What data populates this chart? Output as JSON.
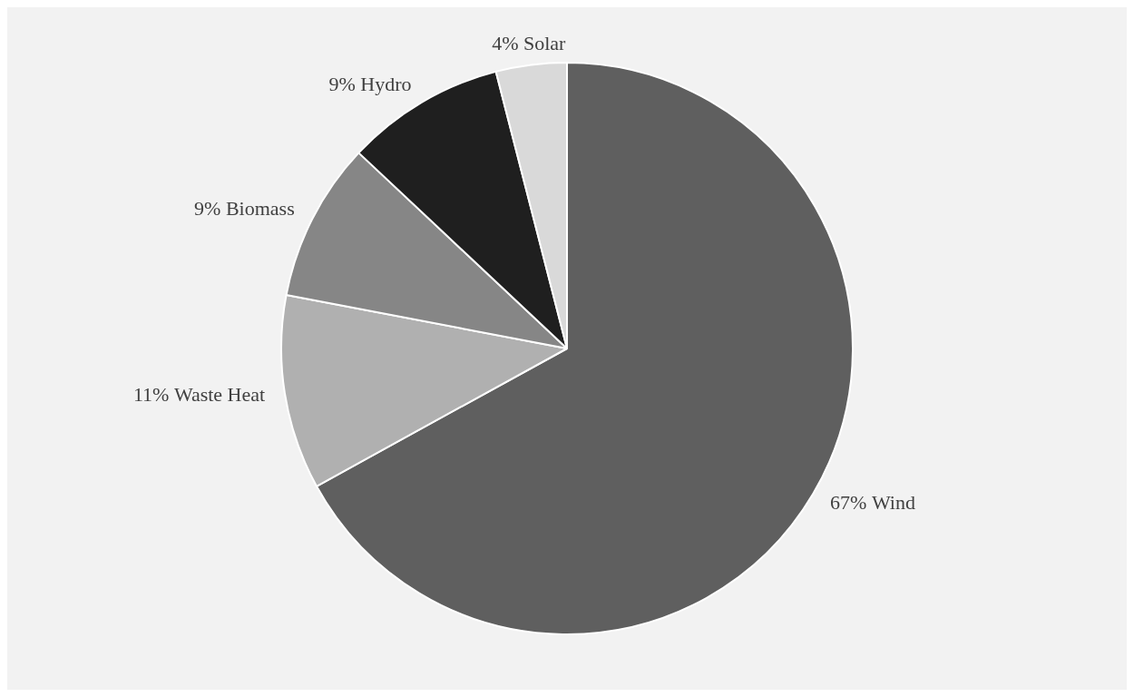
{
  "chart_data": {
    "type": "pie",
    "categories": [
      "Wind",
      "Waste Heat",
      "Biomass",
      "Hydro",
      "Solar"
    ],
    "values": [
      67,
      11,
      9,
      9,
      4
    ],
    "colors": [
      "#5f5f5f",
      "#b0b0b0",
      "#868686",
      "#1f1f1f",
      "#d9d9d9"
    ],
    "value_labels": [
      "67%",
      "11%",
      "9%",
      "9%",
      "4%"
    ],
    "legend": false
  }
}
